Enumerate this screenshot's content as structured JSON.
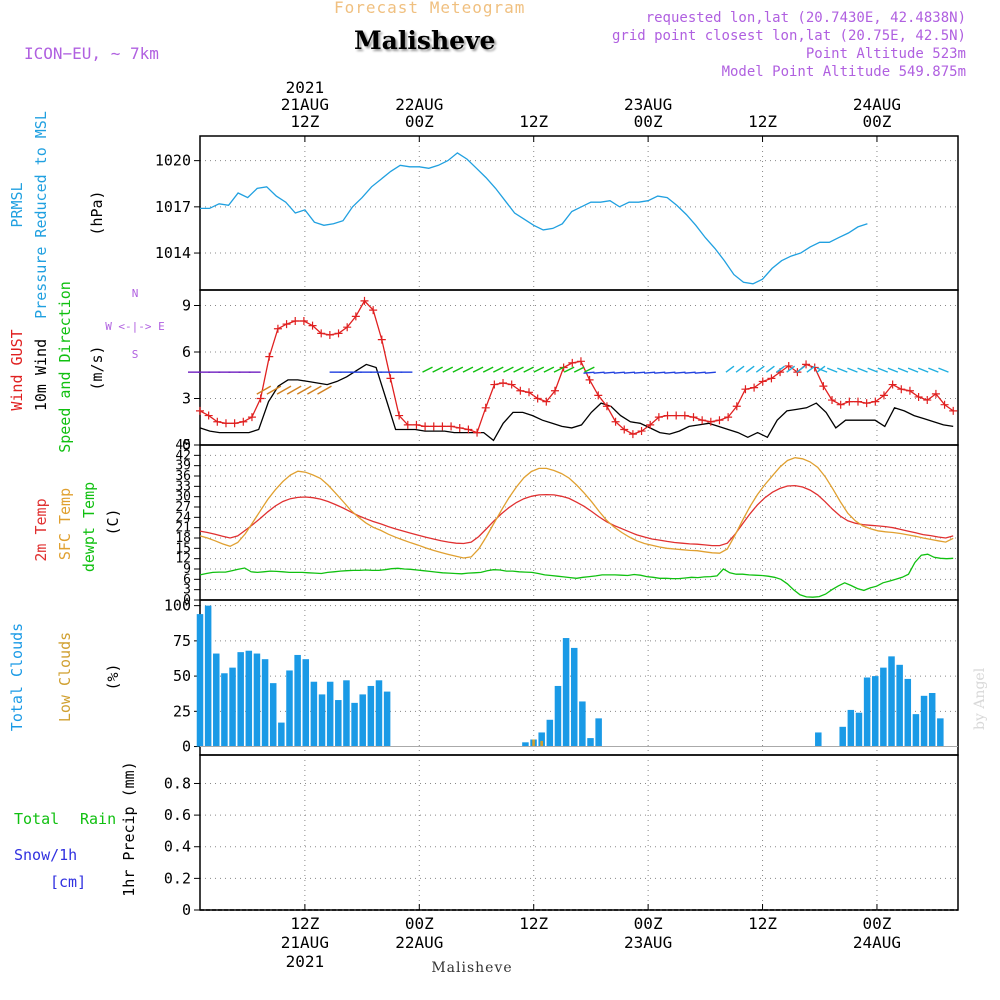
{
  "header": {
    "supertitle": "Forecast Meteogram",
    "location": "Malisheve",
    "model": "ICON−EU, ∼ 7km",
    "requested": "requested lon,lat (20.7430E, 42.4838N)",
    "gridpoint": "grid point closest lon,lat (20.75E, 42.5N)",
    "point_alt": "Point Altitude 523m",
    "model_alt": "Model Point Altitude 549.875m",
    "footer_location": "Malisheve",
    "credit": "by Angel"
  },
  "time_axis": {
    "top_labels": [
      {
        "t": 0,
        "lines": [
          "2021",
          "21AUG",
          "12Z"
        ]
      },
      {
        "t": 12,
        "lines": [
          "22AUG",
          "00Z"
        ]
      },
      {
        "t": 24,
        "lines": [
          "12Z"
        ]
      },
      {
        "t": 36,
        "lines": [
          "23AUG",
          "00Z"
        ]
      },
      {
        "t": 48,
        "lines": [
          "12Z"
        ]
      },
      {
        "t": 60,
        "lines": [
          "24AUG",
          "00Z"
        ]
      }
    ],
    "bottom_labels": [
      {
        "t": 0,
        "lines": [
          "12Z",
          "21AUG",
          "2021"
        ]
      },
      {
        "t": 12,
        "lines": [
          "00Z",
          "22AUG"
        ]
      },
      {
        "t": 24,
        "lines": [
          "12Z"
        ]
      },
      {
        "t": 36,
        "lines": [
          "00Z",
          "23AUG"
        ]
      },
      {
        "t": 48,
        "lines": [
          "12Z"
        ]
      },
      {
        "t": 60,
        "lines": [
          "00Z",
          "24AUG"
        ]
      }
    ]
  },
  "colors": {
    "pressure": "#20a0e0",
    "gust": "#e02020",
    "wind": "#000000",
    "t2m": "#e03030",
    "sfc": "#e0a030",
    "dew": "#10c010",
    "cloud_total": "#1a9ae6",
    "cloud_low": "#d0a030",
    "rain": "#10c010",
    "snow": "#3030e0",
    "violet": "#b060e0"
  },
  "chart_data": [
    {
      "type": "line",
      "panel": "pressure",
      "ylabel": [
        "PRMSL",
        "Pressure Reduced to MSL"
      ],
      "unit": "(hPa)",
      "ylim": [
        1011.6,
        1021.6
      ],
      "yticks": [
        1014,
        1017,
        1020
      ],
      "x_start": -11,
      "x_step": 1,
      "series": [
        {
          "values": [
            1016.9,
            1016.9,
            1017.2,
            1017.1,
            1017.9,
            1017.6,
            1018.2,
            1018.3,
            1017.7,
            1017.3,
            1016.6,
            1016.8,
            1016.0,
            1015.8,
            1015.9,
            1016.1,
            1017.0,
            1017.6,
            1018.3,
            1018.8,
            1019.3,
            1019.7,
            1019.6,
            1019.6,
            1019.5,
            1019.7,
            1020.0,
            1020.5,
            1020.1,
            1019.5,
            1018.9,
            1018.2,
            1017.4,
            1016.6,
            1016.2,
            1015.8,
            1015.5,
            1015.6,
            1015.9,
            1016.7,
            1017.0,
            1017.3,
            1017.3,
            1017.4,
            1017.0,
            1017.3,
            1017.3,
            1017.4,
            1017.7,
            1017.6,
            1017.1,
            1016.5,
            1015.8,
            1015.0,
            1014.3,
            1013.5,
            1012.6,
            1012.1,
            1012.0,
            1012.3,
            1013.0,
            1013.5,
            1013.8,
            1014.0,
            1014.4,
            1014.7,
            1014.7,
            1015.0,
            1015.3,
            1015.7,
            1015.9
          ]
        }
      ]
    },
    {
      "type": "line",
      "panel": "wind",
      "ylabel": [
        "Wind GUST",
        "10m Wind",
        "Speed and Direction"
      ],
      "unit": "(m/s)",
      "compass": [
        "N",
        "W <-|-> E",
        "S"
      ],
      "ylim": [
        0,
        10
      ],
      "yticks": [
        0,
        3,
        6,
        9
      ],
      "x_start": -11,
      "x_step": 1,
      "series": [
        {
          "name": "Wind GUST",
          "values": [
            2.2,
            1.9,
            1.5,
            1.4,
            1.4,
            1.5,
            1.8,
            3.0,
            5.7,
            7.5,
            7.8,
            8.0,
            8.0,
            7.7,
            7.2,
            7.1,
            7.2,
            7.6,
            8.3,
            9.3,
            8.7,
            6.8,
            4.3,
            1.9,
            1.3,
            1.3,
            1.2,
            1.2,
            1.2,
            1.2,
            1.1,
            1.0,
            0.8,
            2.4,
            3.9,
            4.0,
            3.9,
            3.5,
            3.4,
            3.0,
            2.8,
            3.5,
            5.0,
            5.3,
            5.4,
            4.2,
            3.2,
            2.5,
            1.5,
            1.0,
            0.7,
            0.9,
            1.3,
            1.8,
            1.9,
            1.9,
            1.9,
            1.8,
            1.6,
            1.5,
            1.6,
            1.8,
            2.5,
            3.6,
            3.7,
            4.1,
            4.3,
            4.7,
            5.1,
            4.7,
            5.2,
            5.0,
            3.8,
            2.9,
            2.6,
            2.8,
            2.8,
            2.7,
            2.8,
            3.2,
            3.9,
            3.6,
            3.5,
            3.1,
            2.9,
            3.3,
            2.6,
            2.2
          ]
        },
        {
          "name": "10m Wind",
          "values": [
            1.1,
            0.9,
            0.8,
            0.8,
            0.8,
            0.8,
            1.0,
            2.8,
            3.8,
            4.2,
            4.2,
            4.1,
            4.0,
            3.9,
            4.1,
            4.4,
            4.8,
            5.2,
            5.0,
            3.0,
            1.0,
            1.0,
            1.0,
            0.9,
            0.9,
            0.9,
            0.8,
            0.8,
            0.8,
            0.8,
            0.3,
            1.4,
            2.1,
            2.1,
            1.9,
            1.6,
            1.4,
            1.2,
            1.1,
            1.3,
            2.1,
            2.7,
            2.5,
            1.9,
            1.5,
            1.4,
            1.1,
            0.8,
            0.7,
            0.9,
            1.2,
            1.3,
            1.4,
            1.2,
            1.0,
            0.8,
            0.5,
            0.8,
            0.5,
            1.6,
            2.2,
            2.3,
            2.4,
            2.7,
            2.1,
            1.1,
            1.6,
            1.6,
            1.6,
            1.6,
            1.2,
            2.4,
            2.2,
            1.9,
            1.7,
            1.5,
            1.3,
            1.2
          ]
        }
      ]
    },
    {
      "type": "line",
      "panel": "temperature",
      "ylabel": [
        "2m Temp",
        "SFC Temp",
        "dewpt Temp"
      ],
      "unit": "(C)",
      "ylim": [
        0,
        45
      ],
      "yticks": [
        0,
        3,
        6,
        9,
        12,
        15,
        18,
        21,
        24,
        27,
        30,
        33,
        36,
        39,
        42,
        45
      ],
      "x_start": -11,
      "x_step": 1,
      "series": [
        {
          "name": "2m Temp",
          "values": [
            20.0,
            19.6,
            19.1,
            18.5,
            18.0,
            18.6,
            20.2,
            21.9,
            23.7,
            25.6,
            27.3,
            28.6,
            29.4,
            29.8,
            29.9,
            29.7,
            29.3,
            28.6,
            27.7,
            26.7,
            25.6,
            24.5,
            23.6,
            22.8,
            22.1,
            21.3,
            20.6,
            20.0,
            19.4,
            18.8,
            18.2,
            17.7,
            17.2,
            16.8,
            16.5,
            16.4,
            16.8,
            18.4,
            20.6,
            22.9,
            25.0,
            26.8,
            28.3,
            29.4,
            30.1,
            30.5,
            30.6,
            30.5,
            30.1,
            29.5,
            28.4,
            27.2,
            25.7,
            24.1,
            22.7,
            21.6,
            20.7,
            19.8,
            18.9,
            18.3,
            17.7,
            17.4,
            17.0,
            16.7,
            16.5,
            16.3,
            16.2,
            16.0,
            15.8,
            15.8,
            16.5,
            19.0,
            22.0,
            25.0,
            27.6,
            29.7,
            31.3,
            32.4,
            33.1,
            33.2,
            32.8,
            31.9,
            30.5,
            28.5,
            26.3,
            24.4,
            23.0,
            22.3,
            21.9,
            21.7,
            21.5,
            21.3,
            21.0,
            20.5,
            20.0,
            19.5,
            19.0,
            18.7,
            18.3,
            18.0,
            18.6
          ]
        },
        {
          "name": "SFC Temp",
          "values": [
            18.6,
            18.0,
            17.2,
            16.3,
            15.6,
            16.7,
            19.2,
            22.5,
            25.9,
            29.2,
            32.0,
            34.4,
            36.3,
            37.4,
            37.1,
            36.3,
            35.3,
            33.4,
            31.0,
            28.6,
            26.1,
            24.1,
            22.4,
            21.1,
            20.2,
            19.1,
            18.2,
            17.4,
            16.6,
            15.9,
            15.1,
            14.4,
            13.8,
            13.2,
            12.7,
            12.2,
            12.5,
            14.8,
            18.3,
            22.2,
            26.0,
            29.6,
            32.8,
            35.5,
            37.3,
            38.2,
            38.2,
            37.6,
            36.7,
            35.4,
            33.4,
            31.1,
            28.5,
            25.7,
            23.1,
            21.1,
            19.6,
            18.3,
            17.2,
            16.4,
            15.9,
            15.4,
            15.0,
            14.8,
            14.6,
            14.4,
            14.3,
            14.0,
            13.7,
            13.6,
            14.8,
            18.7,
            23.0,
            27.1,
            30.6,
            33.5,
            36.1,
            38.6,
            40.5,
            41.3,
            41.0,
            40.1,
            38.5,
            35.8,
            32.3,
            28.6,
            25.2,
            23.0,
            21.5,
            20.7,
            20.1,
            19.8,
            19.6,
            19.3,
            18.9,
            18.5,
            18.0,
            17.6,
            17.2,
            16.8,
            17.9
          ]
        },
        {
          "name": "dewpt Temp",
          "values": [
            7.3,
            7.7,
            8.0,
            8.1,
            8.1,
            8.5,
            8.9,
            9.3,
            8.2,
            8.0,
            8.2,
            8.4,
            8.3,
            8.2,
            8.0,
            8.0,
            8.0,
            7.9,
            7.8,
            7.7,
            8.0,
            8.2,
            8.4,
            8.5,
            8.6,
            8.6,
            8.7,
            8.6,
            8.6,
            8.8,
            9.1,
            9.2,
            9.0,
            8.9,
            8.7,
            8.5,
            8.3,
            8.1,
            7.9,
            7.8,
            7.7,
            7.6,
            7.8,
            7.9,
            8.0,
            8.5,
            8.8,
            8.7,
            8.4,
            8.4,
            8.2,
            8.1,
            8.0,
            7.7,
            7.3,
            7.1,
            6.9,
            6.7,
            6.5,
            6.3,
            6.6,
            6.8,
            7.0,
            7.3,
            7.3,
            7.3,
            7.2,
            7.1,
            7.4,
            7.2,
            6.8,
            6.6,
            6.3,
            6.3,
            6.2,
            6.2,
            6.4,
            6.6,
            6.5,
            6.7,
            6.8,
            7.0,
            9.0,
            7.9,
            7.5,
            7.5,
            7.3,
            7.2,
            7.1,
            6.9,
            6.6,
            6.0,
            4.7,
            3.0,
            1.5,
            0.9,
            0.8,
            1.0,
            1.7,
            3.0,
            4.1,
            5.0,
            4.2,
            3.3,
            2.8,
            3.5,
            4.0,
            5.0,
            5.5,
            6.0,
            6.6,
            7.5,
            10.9,
            13.0,
            13.3,
            12.4,
            12.1,
            12.0,
            12.1
          ]
        }
      ]
    },
    {
      "type": "bar",
      "panel": "clouds",
      "ylabel": [
        "Total Clouds",
        "Low Clouds"
      ],
      "unit": "(%)",
      "ylim": [
        -6,
        104
      ],
      "yticks": [
        0,
        25,
        50,
        75,
        100
      ],
      "x_start": -11,
      "x_step": 1,
      "series": [
        {
          "name": "Total Clouds",
          "values": [
            94,
            100,
            66,
            52,
            56,
            67,
            68,
            66,
            62,
            45,
            17,
            54,
            65,
            62,
            46,
            37,
            46,
            33,
            47,
            31,
            37,
            43,
            47,
            39,
            0,
            0,
            0,
            0,
            0,
            0,
            0,
            0,
            0,
            0,
            0,
            0,
            0,
            0,
            0,
            0,
            3,
            5,
            10,
            19,
            43,
            77,
            70,
            32,
            6,
            20,
            0,
            0,
            0,
            0,
            0,
            0,
            0,
            0,
            0,
            0,
            0,
            0,
            0,
            0,
            0,
            0,
            0,
            0,
            0,
            0,
            0,
            0,
            0,
            0,
            0,
            0,
            10,
            0,
            0,
            14,
            26,
            24,
            49,
            50,
            56,
            64,
            58,
            48,
            23,
            36,
            38,
            20,
            0
          ]
        },
        {
          "name": "Low Clouds",
          "values": [
            0,
            0,
            0,
            0,
            0,
            0,
            0,
            0,
            0,
            0,
            0,
            0,
            0,
            0,
            0,
            0,
            0,
            0,
            0,
            0,
            0,
            0,
            0,
            0,
            0,
            0,
            0,
            0,
            0,
            0,
            0,
            0,
            0,
            0,
            0,
            0,
            0,
            0,
            0,
            0,
            0,
            5,
            4,
            0,
            0,
            0,
            0,
            0,
            0,
            0,
            0,
            0,
            0,
            0,
            0,
            0,
            0,
            0,
            0,
            0,
            0,
            0,
            0,
            0,
            0,
            0,
            0,
            0,
            0,
            0,
            0,
            0,
            0,
            0,
            0,
            0,
            0,
            0,
            0,
            0,
            0,
            0,
            0,
            0,
            0,
            0,
            0,
            0,
            0,
            0,
            0,
            0,
            0
          ]
        }
      ]
    },
    {
      "type": "bar",
      "panel": "precip",
      "ylabel": [
        "1hr Precip (mm)"
      ],
      "legend": [
        "Total",
        "Rain",
        "Snow/1h",
        "[cm]"
      ],
      "ylim": [
        0,
        0.98
      ],
      "yticks": [
        0,
        0.2,
        0.4,
        0.6,
        0.8
      ],
      "ytick_labels": [
        "0",
        "0.2",
        "0.4",
        "0.6",
        "0.8"
      ],
      "x_start": -11,
      "x_step": 1,
      "series": [
        {
          "name": "Total Rain",
          "values": []
        }
      ]
    }
  ]
}
